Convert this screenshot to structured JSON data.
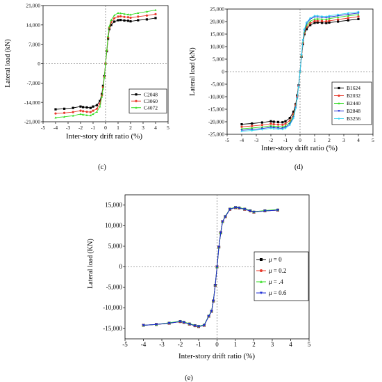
{
  "charts": [
    {
      "panel": "c",
      "caption": "(c)",
      "chart_data": {
        "type": "line",
        "xlabel": "Inter-story drift ratio (%)",
        "ylabel": "Lateral load (kN)",
        "xlim": [
          -5,
          5
        ],
        "ylim": [
          -21000,
          21000
        ],
        "xticks": [
          -5,
          -4,
          -3,
          -2,
          -1,
          0,
          1,
          2,
          3,
          4,
          5
        ],
        "yticks": [
          -21000,
          -14000,
          -7000,
          0,
          7000,
          14000,
          21000
        ],
        "xtick_labels": [
          "-5",
          "-4",
          "-3",
          "-2",
          "-1",
          "0",
          "1",
          "2",
          "3",
          "4",
          "5"
        ],
        "ytick_labels": [
          "-21,000",
          "-14,000",
          "-7,000",
          "0",
          "7,000",
          "14,000",
          "21,000"
        ],
        "legend_position": "bottom-right",
        "grid": false,
        "x": [
          -4,
          -3.3,
          -2.6,
          -2,
          -1.8,
          -1.5,
          -1.2,
          -1,
          -0.7,
          -0.45,
          -0.3,
          -0.2,
          -0.1,
          0,
          0.1,
          0.2,
          0.3,
          0.45,
          0.7,
          1,
          1.2,
          1.5,
          1.8,
          2,
          2.6,
          3.3,
          4
        ],
        "series": [
          {
            "name": "C2048",
            "color": "#000000",
            "marker": "square",
            "values": [
              -16500,
              -16300,
              -16000,
              -15500,
              -15700,
              -15800,
              -16000,
              -15500,
              -15000,
              -13500,
              -11000,
              -8000,
              -4500,
              0,
              4500,
              9000,
              12500,
              14000,
              15200,
              15700,
              15800,
              15600,
              15500,
              15300,
              15700,
              16000,
              16500
            ]
          },
          {
            "name": "C3060",
            "color": "#e8392b",
            "marker": "circle",
            "values": [
              -18000,
              -17800,
              -17500,
              -17000,
              -17200,
              -17400,
              -17500,
              -17000,
              -16300,
              -14500,
              -11500,
              -8500,
              -4800,
              0,
              4800,
              9500,
              13000,
              15000,
              16400,
              17000,
              17100,
              16900,
              16800,
              16600,
              17000,
              17400,
              17900
            ]
          },
          {
            "name": "C4072",
            "color": "#33dd22",
            "marker": "triangle",
            "values": [
              -19500,
              -19200,
              -18800,
              -18200,
              -18400,
              -18600,
              -18700,
              -18200,
              -17400,
              -15500,
              -12000,
              -9000,
              -5000,
              0,
              5000,
              10000,
              13500,
              15800,
              17500,
              18300,
              18200,
              18000,
              17800,
              17700,
              18300,
              18800,
              19400
            ]
          }
        ]
      }
    },
    {
      "panel": "d",
      "caption": "(d)",
      "chart_data": {
        "type": "line",
        "xlabel": "Inter-story drift ratio (%)",
        "ylabel": "Lateral load (kN)",
        "xlim": [
          -5,
          5
        ],
        "ylim": [
          -25000,
          25000
        ],
        "xticks": [
          -5,
          -4,
          -3,
          -2,
          -1,
          0,
          1,
          2,
          3,
          4,
          5
        ],
        "yticks": [
          -25000,
          -20000,
          -15000,
          -10000,
          -5000,
          0,
          5000,
          10000,
          15000,
          20000,
          25000
        ],
        "xtick_labels": [
          "-5",
          "-4",
          "-3",
          "-2",
          "-1",
          "0",
          "1",
          "2",
          "3",
          "4",
          "5"
        ],
        "ytick_labels": [
          "-25,000",
          "-20,000",
          "-15,000",
          "-10,000",
          "-5,000",
          "0",
          "5,000",
          "10,000",
          "15,000",
          "20,000",
          "25,000"
        ],
        "legend_position": "bottom-right",
        "grid": false,
        "x": [
          -4,
          -3.3,
          -2.6,
          -2,
          -1.8,
          -1.5,
          -1.2,
          -1,
          -0.7,
          -0.45,
          -0.3,
          -0.2,
          -0.1,
          0,
          0.1,
          0.2,
          0.3,
          0.45,
          0.7,
          1,
          1.2,
          1.5,
          1.8,
          2,
          2.6,
          3.3,
          4
        ],
        "series": [
          {
            "name": "B1624",
            "color": "#000000",
            "marker": "square",
            "values": [
              -21000,
              -20700,
              -20300,
              -19800,
              -20000,
              -20100,
              -20200,
              -19800,
              -18500,
              -16000,
              -13000,
              -9500,
              -5500,
              0,
              6000,
              11000,
              15000,
              17000,
              18600,
              19500,
              19600,
              19500,
              19400,
              19600,
              20000,
              20500,
              21000
            ]
          },
          {
            "name": "B2032",
            "color": "#e8392b",
            "marker": "circle",
            "values": [
              -22000,
              -21700,
              -21300,
              -20800,
              -21000,
              -21100,
              -21200,
              -20800,
              -19500,
              -17000,
              -13500,
              -10000,
              -5700,
              0,
              6200,
              11500,
              15500,
              17800,
              19300,
              20200,
              20300,
              20200,
              20100,
              20300,
              20800,
              21400,
              22000
            ]
          },
          {
            "name": "B2440",
            "color": "#33dd22",
            "marker": "triangle",
            "values": [
              -22800,
              -22500,
              -22100,
              -21600,
              -21800,
              -21900,
              -22000,
              -21600,
              -20300,
              -17700,
              -14000,
              -10400,
              -5900,
              0,
              6400,
              12000,
              16000,
              18500,
              20100,
              21000,
              21100,
              21000,
              20900,
              21200,
              21700,
              22300,
              22800
            ]
          },
          {
            "name": "B2848",
            "color": "#1a2bd6",
            "marker": "triangle-down",
            "values": [
              -23400,
              -23100,
              -22700,
              -22200,
              -22400,
              -22500,
              -22600,
              -22200,
              -20900,
              -18200,
              -14400,
              -10700,
              -6000,
              0,
              6600,
              12400,
              16500,
              19200,
              21000,
              21900,
              21900,
              21700,
              21600,
              21800,
              22300,
              22900,
              23400
            ]
          },
          {
            "name": "B3256",
            "color": "#3cd6f0",
            "marker": "diamond",
            "values": [
              -23800,
              -23500,
              -23100,
              -22600,
              -22800,
              -22900,
              -23000,
              -22600,
              -21300,
              -18600,
              -14700,
              -10900,
              -6100,
              0,
              6800,
              12800,
              17000,
              19700,
              21400,
              22300,
              22300,
              22100,
              22000,
              22300,
              22800,
              23400,
              23900
            ]
          }
        ]
      }
    },
    {
      "panel": "e",
      "caption": "(e)",
      "chart_data": {
        "type": "line",
        "xlabel": "Inter-story drift ratio (%)",
        "ylabel": "Lateral load (KN)",
        "xlim": [
          -5,
          5
        ],
        "ylim": [
          -17500,
          17500
        ],
        "xticks": [
          -5,
          -4,
          -3,
          -2,
          -1,
          0,
          1,
          2,
          3,
          4,
          5
        ],
        "yticks": [
          -15000,
          -10000,
          -5000,
          0,
          5000,
          10000,
          15000
        ],
        "xtick_labels": [
          "-5",
          "-4",
          "-3",
          "-2",
          "-1",
          "0",
          "1",
          "2",
          "3",
          "4",
          "5"
        ],
        "ytick_labels": [
          "-15,000",
          "-10,000",
          "-5,000",
          "0",
          "5,000",
          "10,000",
          "15,000"
        ],
        "legend_position": "bottom-right",
        "grid": false,
        "x": [
          -4,
          -3.3,
          -2.6,
          -2,
          -1.8,
          -1.5,
          -1.2,
          -1,
          -0.7,
          -0.45,
          -0.3,
          -0.2,
          -0.1,
          0,
          0.1,
          0.2,
          0.3,
          0.45,
          0.7,
          1,
          1.2,
          1.5,
          1.8,
          2,
          2.6,
          3.3
        ],
        "series": [
          {
            "name": "μ = 0",
            "color": "#000000",
            "marker": "square",
            "values": [
              -14200,
              -14000,
              -13700,
              -13300,
              -13500,
              -13900,
              -14300,
              -14500,
              -14200,
              -12000,
              -10800,
              -8300,
              -4500,
              0,
              4800,
              8300,
              11000,
              12200,
              14000,
              14400,
              14300,
              14000,
              13600,
              13300,
              13600,
              13800
            ]
          },
          {
            "name": "μ = 0.2",
            "color": "#e8392b",
            "marker": "circle",
            "values": [
              -14200,
              -14000,
              -13700,
              -13300,
              -13500,
              -13900,
              -14300,
              -14500,
              -14200,
              -12000,
              -10800,
              -8300,
              -4500,
              0,
              4800,
              8300,
              11000,
              12200,
              14000,
              14400,
              14300,
              14000,
              13600,
              13300,
              13600,
              13800
            ]
          },
          {
            "name": "μ = .4",
            "color": "#33dd22",
            "marker": "triangle",
            "values": [
              -14200,
              -14000,
              -13600,
              -13200,
              -13400,
              -13800,
              -14200,
              -14400,
              -14100,
              -11900,
              -10700,
              -8200,
              -4400,
              0,
              4800,
              8300,
              11000,
              12300,
              14100,
              14500,
              14400,
              14100,
              13700,
              13400,
              13700,
              13900
            ]
          },
          {
            "name": "μ = 0.6",
            "color": "#1a2bd6",
            "marker": "triangle-down",
            "values": [
              -14200,
              -14000,
              -13700,
              -13300,
              -13500,
              -13900,
              -14300,
              -14500,
              -14200,
              -12000,
              -10800,
              -8300,
              -4500,
              0,
              4800,
              8300,
              11000,
              12200,
              14000,
              14400,
              14300,
              14000,
              13600,
              13300,
              13600,
              13800
            ]
          }
        ],
        "legend_labels": [
          {
            "prefix": "μ",
            "suffix": " = 0"
          },
          {
            "prefix": "μ",
            "suffix": " = 0.2"
          },
          {
            "prefix": "μ",
            "suffix": " = .4"
          },
          {
            "prefix": "μ",
            "suffix": " = 0.6"
          }
        ]
      }
    }
  ]
}
